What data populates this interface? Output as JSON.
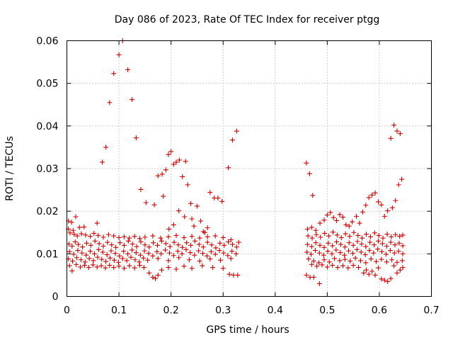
{
  "chart_data": {
    "type": "scatter",
    "title": "Day 086 of 2023, Rate Of TEC Index for receiver ptgg",
    "xlabel": "GPS time / hours",
    "ylabel": "ROTI / TECUs",
    "xlim": [
      0,
      0.7
    ],
    "ylim": [
      0,
      0.06
    ],
    "xticks": [
      "0",
      "0.1",
      "0.2",
      "0.3",
      "0.4",
      "0.5",
      "0.6",
      "0.7"
    ],
    "yticks": [
      "0",
      "0.01",
      "0.02",
      "0.03",
      "0.04",
      "0.05",
      "0.06"
    ],
    "grid": true,
    "marker": "plus",
    "color": "#cc0000",
    "points": [
      [
        0.075,
        0.035
      ],
      [
        0.068,
        0.0315
      ],
      [
        0.082,
        0.0455
      ],
      [
        0.09,
        0.0523
      ],
      [
        0.1,
        0.0567
      ],
      [
        0.107,
        0.06
      ],
      [
        0.117,
        0.0532
      ],
      [
        0.125,
        0.0462
      ],
      [
        0.133,
        0.0372
      ],
      [
        0.142,
        0.0251
      ],
      [
        0.152,
        0.022
      ],
      [
        0.168,
        0.0215
      ],
      [
        0.175,
        0.0283
      ],
      [
        0.183,
        0.0287
      ],
      [
        0.19,
        0.0297
      ],
      [
        0.195,
        0.0333
      ],
      [
        0.2,
        0.034
      ],
      [
        0.205,
        0.031
      ],
      [
        0.21,
        0.0315
      ],
      [
        0.216,
        0.032
      ],
      [
        0.222,
        0.0281
      ],
      [
        0.228,
        0.0317
      ],
      [
        0.232,
        0.0262
      ],
      [
        0.238,
        0.0218
      ],
      [
        0.244,
        0.0165
      ],
      [
        0.25,
        0.0212
      ],
      [
        0.257,
        0.0177
      ],
      [
        0.265,
        0.015
      ],
      [
        0.275,
        0.0244
      ],
      [
        0.283,
        0.0231
      ],
      [
        0.29,
        0.0231
      ],
      [
        0.298,
        0.0223
      ],
      [
        0.31,
        0.0302
      ],
      [
        0.318,
        0.0367
      ],
      [
        0.326,
        0.0388
      ],
      [
        0.185,
        0.0235
      ],
      [
        0.215,
        0.0201
      ],
      [
        0.196,
        0.0158
      ],
      [
        0.205,
        0.0168
      ],
      [
        0.226,
        0.0187
      ],
      [
        0.24,
        0.0182
      ],
      [
        0.262,
        0.0152
      ],
      [
        0.27,
        0.0161
      ],
      [
        0.003,
        0.0177
      ],
      [
        0.009,
        0.0174
      ],
      [
        0.017,
        0.0187
      ],
      [
        0.003,
        0.0158
      ],
      [
        0.012,
        0.0155
      ],
      [
        0.024,
        0.0162
      ],
      [
        0.033,
        0.0163
      ],
      [
        0.058,
        0.0172
      ],
      [
        0.006,
        0.0149
      ],
      [
        0.014,
        0.0146
      ],
      [
        0.02,
        0.0142
      ],
      [
        0.028,
        0.0147
      ],
      [
        0.036,
        0.0144
      ],
      [
        0.045,
        0.0141
      ],
      [
        0.052,
        0.0148
      ],
      [
        0.06,
        0.0143
      ],
      [
        0.07,
        0.0139
      ],
      [
        0.08,
        0.0145
      ],
      [
        0.09,
        0.0142
      ],
      [
        0.1,
        0.0138
      ],
      [
        0.11,
        0.014
      ],
      [
        0.12,
        0.0137
      ],
      [
        0.13,
        0.0141
      ],
      [
        0.14,
        0.0136
      ],
      [
        0.15,
        0.0139
      ],
      [
        0.165,
        0.0142
      ],
      [
        0.18,
        0.0137
      ],
      [
        0.195,
        0.014
      ],
      [
        0.21,
        0.0143
      ],
      [
        0.225,
        0.0138
      ],
      [
        0.24,
        0.0141
      ],
      [
        0.255,
        0.0137
      ],
      [
        0.27,
        0.014
      ],
      [
        0.285,
        0.0142
      ],
      [
        0.3,
        0.0138
      ],
      [
        0.315,
        0.0133
      ],
      [
        0.33,
        0.0127
      ],
      [
        0.004,
        0.0123
      ],
      [
        0.01,
        0.0118
      ],
      [
        0.016,
        0.0128
      ],
      [
        0.022,
        0.0122
      ],
      [
        0.03,
        0.0116
      ],
      [
        0.038,
        0.0125
      ],
      [
        0.046,
        0.012
      ],
      [
        0.054,
        0.013
      ],
      [
        0.062,
        0.0124
      ],
      [
        0.07,
        0.0118
      ],
      [
        0.078,
        0.0127
      ],
      [
        0.086,
        0.0121
      ],
      [
        0.094,
        0.0115
      ],
      [
        0.102,
        0.0126
      ],
      [
        0.11,
        0.012
      ],
      [
        0.118,
        0.013
      ],
      [
        0.126,
        0.0123
      ],
      [
        0.134,
        0.0117
      ],
      [
        0.142,
        0.0128
      ],
      [
        0.15,
        0.0121
      ],
      [
        0.158,
        0.0116
      ],
      [
        0.166,
        0.0126
      ],
      [
        0.174,
        0.012
      ],
      [
        0.182,
        0.013
      ],
      [
        0.19,
        0.0124
      ],
      [
        0.198,
        0.0117
      ],
      [
        0.206,
        0.0127
      ],
      [
        0.214,
        0.0121
      ],
      [
        0.222,
        0.0115
      ],
      [
        0.23,
        0.0126
      ],
      [
        0.238,
        0.012
      ],
      [
        0.246,
        0.013
      ],
      [
        0.254,
        0.0122
      ],
      [
        0.262,
        0.0116
      ],
      [
        0.27,
        0.0127
      ],
      [
        0.278,
        0.0121
      ],
      [
        0.286,
        0.0114
      ],
      [
        0.294,
        0.0125
      ],
      [
        0.302,
        0.012
      ],
      [
        0.31,
        0.0128
      ],
      [
        0.318,
        0.0122
      ],
      [
        0.326,
        0.0116
      ],
      [
        0.005,
        0.0105
      ],
      [
        0.013,
        0.0099
      ],
      [
        0.021,
        0.0108
      ],
      [
        0.029,
        0.0102
      ],
      [
        0.037,
        0.0097
      ],
      [
        0.045,
        0.0106
      ],
      [
        0.053,
        0.01
      ],
      [
        0.061,
        0.011
      ],
      [
        0.069,
        0.0104
      ],
      [
        0.077,
        0.0098
      ],
      [
        0.085,
        0.0107
      ],
      [
        0.093,
        0.0101
      ],
      [
        0.101,
        0.0095
      ],
      [
        0.109,
        0.0106
      ],
      [
        0.117,
        0.01
      ],
      [
        0.125,
        0.0109
      ],
      [
        0.133,
        0.0103
      ],
      [
        0.141,
        0.0097
      ],
      [
        0.149,
        0.0107
      ],
      [
        0.157,
        0.0101
      ],
      [
        0.165,
        0.0095
      ],
      [
        0.173,
        0.0105
      ],
      [
        0.181,
        0.01
      ],
      [
        0.189,
        0.0109
      ],
      [
        0.197,
        0.0102
      ],
      [
        0.205,
        0.0096
      ],
      [
        0.213,
        0.0106
      ],
      [
        0.221,
        0.01
      ],
      [
        0.229,
        0.011
      ],
      [
        0.237,
        0.0103
      ],
      [
        0.245,
        0.0097
      ],
      [
        0.253,
        0.0107
      ],
      [
        0.261,
        0.0101
      ],
      [
        0.269,
        0.0095
      ],
      [
        0.277,
        0.0105
      ],
      [
        0.285,
        0.0099
      ],
      [
        0.293,
        0.0108
      ],
      [
        0.301,
        0.0102
      ],
      [
        0.309,
        0.0096
      ],
      [
        0.317,
        0.0106
      ],
      [
        0.325,
        0.01
      ],
      [
        0.003,
        0.0088
      ],
      [
        0.011,
        0.0083
      ],
      [
        0.019,
        0.0091
      ],
      [
        0.027,
        0.0086
      ],
      [
        0.035,
        0.0081
      ],
      [
        0.043,
        0.0089
      ],
      [
        0.051,
        0.0084
      ],
      [
        0.059,
        0.0092
      ],
      [
        0.067,
        0.0087
      ],
      [
        0.075,
        0.0082
      ],
      [
        0.083,
        0.009
      ],
      [
        0.091,
        0.0085
      ],
      [
        0.099,
        0.008
      ],
      [
        0.107,
        0.0089
      ],
      [
        0.115,
        0.0084
      ],
      [
        0.123,
        0.0092
      ],
      [
        0.131,
        0.0086
      ],
      [
        0.139,
        0.0081
      ],
      [
        0.147,
        0.009
      ],
      [
        0.155,
        0.0085
      ],
      [
        0.175,
        0.0089
      ],
      [
        0.195,
        0.0084
      ],
      [
        0.215,
        0.0091
      ],
      [
        0.235,
        0.0086
      ],
      [
        0.255,
        0.0083
      ],
      [
        0.275,
        0.0088
      ],
      [
        0.295,
        0.0085
      ],
      [
        0.315,
        0.0089
      ],
      [
        0.005,
        0.0072
      ],
      [
        0.01,
        0.006
      ],
      [
        0.018,
        0.0075
      ],
      [
        0.026,
        0.0069
      ],
      [
        0.034,
        0.0073
      ],
      [
        0.042,
        0.0068
      ],
      [
        0.05,
        0.0074
      ],
      [
        0.058,
        0.0069
      ],
      [
        0.066,
        0.0072
      ],
      [
        0.074,
        0.0067
      ],
      [
        0.082,
        0.0073
      ],
      [
        0.09,
        0.0068
      ],
      [
        0.1,
        0.0071
      ],
      [
        0.11,
        0.0066
      ],
      [
        0.12,
        0.0072
      ],
      [
        0.13,
        0.0067
      ],
      [
        0.14,
        0.0073
      ],
      [
        0.148,
        0.0068
      ],
      [
        0.158,
        0.0055
      ],
      [
        0.165,
        0.0045
      ],
      [
        0.17,
        0.0042
      ],
      [
        0.175,
        0.005
      ],
      [
        0.182,
        0.0062
      ],
      [
        0.195,
        0.0068
      ],
      [
        0.21,
        0.0064
      ],
      [
        0.225,
        0.0071
      ],
      [
        0.24,
        0.0066
      ],
      [
        0.26,
        0.0072
      ],
      [
        0.28,
        0.0068
      ],
      [
        0.3,
        0.0066
      ],
      [
        0.312,
        0.0052
      ],
      [
        0.32,
        0.005
      ],
      [
        0.328,
        0.005
      ],
      [
        0.46,
        0.0313
      ],
      [
        0.466,
        0.0288
      ],
      [
        0.472,
        0.0237
      ],
      [
        0.46,
        0.005
      ],
      [
        0.467,
        0.0045
      ],
      [
        0.474,
        0.0045
      ],
      [
        0.485,
        0.003
      ],
      [
        0.462,
        0.0158
      ],
      [
        0.47,
        0.0162
      ],
      [
        0.478,
        0.0155
      ],
      [
        0.486,
        0.0172
      ],
      [
        0.494,
        0.0179
      ],
      [
        0.5,
        0.0191
      ],
      [
        0.506,
        0.0197
      ],
      [
        0.512,
        0.0185
      ],
      [
        0.518,
        0.0178
      ],
      [
        0.524,
        0.0192
      ],
      [
        0.53,
        0.0186
      ],
      [
        0.536,
        0.0168
      ],
      [
        0.542,
        0.0165
      ],
      [
        0.548,
        0.0175
      ],
      [
        0.556,
        0.0188
      ],
      [
        0.562,
        0.0172
      ],
      [
        0.568,
        0.0198
      ],
      [
        0.574,
        0.0214
      ],
      [
        0.58,
        0.0232
      ],
      [
        0.586,
        0.0238
      ],
      [
        0.592,
        0.0243
      ],
      [
        0.598,
        0.0222
      ],
      [
        0.604,
        0.0215
      ],
      [
        0.61,
        0.0188
      ],
      [
        0.616,
        0.0201
      ],
      [
        0.622,
        0.0371
      ],
      [
        0.628,
        0.0402
      ],
      [
        0.634,
        0.0388
      ],
      [
        0.64,
        0.0382
      ],
      [
        0.643,
        0.0275
      ],
      [
        0.637,
        0.0262
      ],
      [
        0.631,
        0.0225
      ],
      [
        0.625,
        0.0208
      ],
      [
        0.463,
        0.0142
      ],
      [
        0.471,
        0.0137
      ],
      [
        0.479,
        0.0145
      ],
      [
        0.487,
        0.0139
      ],
      [
        0.495,
        0.0148
      ],
      [
        0.503,
        0.0142
      ],
      [
        0.511,
        0.0151
      ],
      [
        0.519,
        0.0144
      ],
      [
        0.527,
        0.0138
      ],
      [
        0.535,
        0.0147
      ],
      [
        0.543,
        0.0141
      ],
      [
        0.551,
        0.015
      ],
      [
        0.559,
        0.0143
      ],
      [
        0.567,
        0.0137
      ],
      [
        0.575,
        0.0146
      ],
      [
        0.583,
        0.014
      ],
      [
        0.591,
        0.0149
      ],
      [
        0.599,
        0.0143
      ],
      [
        0.607,
        0.0137
      ],
      [
        0.615,
        0.0146
      ],
      [
        0.623,
        0.014
      ],
      [
        0.631,
        0.0145
      ],
      [
        0.639,
        0.0141
      ],
      [
        0.645,
        0.0144
      ],
      [
        0.462,
        0.0122
      ],
      [
        0.47,
        0.0117
      ],
      [
        0.478,
        0.0126
      ],
      [
        0.486,
        0.012
      ],
      [
        0.494,
        0.0115
      ],
      [
        0.502,
        0.0125
      ],
      [
        0.51,
        0.0119
      ],
      [
        0.518,
        0.0128
      ],
      [
        0.526,
        0.0122
      ],
      [
        0.534,
        0.0116
      ],
      [
        0.542,
        0.0126
      ],
      [
        0.55,
        0.012
      ],
      [
        0.558,
        0.0129
      ],
      [
        0.566,
        0.0123
      ],
      [
        0.574,
        0.0117
      ],
      [
        0.582,
        0.0127
      ],
      [
        0.59,
        0.0121
      ],
      [
        0.598,
        0.013
      ],
      [
        0.606,
        0.0124
      ],
      [
        0.614,
        0.0118
      ],
      [
        0.622,
        0.0127
      ],
      [
        0.63,
        0.0121
      ],
      [
        0.638,
        0.0125
      ],
      [
        0.645,
        0.0119
      ],
      [
        0.461,
        0.0104
      ],
      [
        0.469,
        0.0099
      ],
      [
        0.477,
        0.0108
      ],
      [
        0.485,
        0.0102
      ],
      [
        0.493,
        0.0097
      ],
      [
        0.501,
        0.0106
      ],
      [
        0.509,
        0.01
      ],
      [
        0.517,
        0.0109
      ],
      [
        0.525,
        0.0103
      ],
      [
        0.533,
        0.0097
      ],
      [
        0.541,
        0.0107
      ],
      [
        0.549,
        0.0101
      ],
      [
        0.557,
        0.011
      ],
      [
        0.565,
        0.0104
      ],
      [
        0.573,
        0.0098
      ],
      [
        0.581,
        0.0108
      ],
      [
        0.589,
        0.0102
      ],
      [
        0.597,
        0.0111
      ],
      [
        0.605,
        0.0105
      ],
      [
        0.613,
        0.0099
      ],
      [
        0.621,
        0.0108
      ],
      [
        0.629,
        0.0102
      ],
      [
        0.637,
        0.0106
      ],
      [
        0.645,
        0.01
      ],
      [
        0.464,
        0.0088
      ],
      [
        0.474,
        0.0083
      ],
      [
        0.484,
        0.0079
      ],
      [
        0.494,
        0.0086
      ],
      [
        0.504,
        0.0081
      ],
      [
        0.514,
        0.0089
      ],
      [
        0.524,
        0.0084
      ],
      [
        0.534,
        0.0087
      ],
      [
        0.544,
        0.0083
      ],
      [
        0.554,
        0.009
      ],
      [
        0.564,
        0.0084
      ],
      [
        0.574,
        0.0079
      ],
      [
        0.584,
        0.0088
      ],
      [
        0.594,
        0.0082
      ],
      [
        0.604,
        0.0087
      ],
      [
        0.614,
        0.0081
      ],
      [
        0.624,
        0.0086
      ],
      [
        0.634,
        0.008
      ],
      [
        0.644,
        0.0084
      ],
      [
        0.47,
        0.0075
      ],
      [
        0.48,
        0.0071
      ],
      [
        0.49,
        0.0074
      ],
      [
        0.5,
        0.0069
      ],
      [
        0.51,
        0.0073
      ],
      [
        0.52,
        0.0068
      ],
      [
        0.53,
        0.0072
      ],
      [
        0.54,
        0.0067
      ],
      [
        0.55,
        0.0073
      ],
      [
        0.56,
        0.0068
      ],
      [
        0.57,
        0.0055
      ],
      [
        0.575,
        0.0062
      ],
      [
        0.58,
        0.0052
      ],
      [
        0.586,
        0.0059
      ],
      [
        0.592,
        0.005
      ],
      [
        0.598,
        0.0067
      ],
      [
        0.604,
        0.0041
      ],
      [
        0.61,
        0.0038
      ],
      [
        0.616,
        0.0035
      ],
      [
        0.622,
        0.0042
      ],
      [
        0.628,
        0.0072
      ],
      [
        0.634,
        0.0055
      ],
      [
        0.64,
        0.0062
      ],
      [
        0.645,
        0.0068
      ]
    ]
  }
}
